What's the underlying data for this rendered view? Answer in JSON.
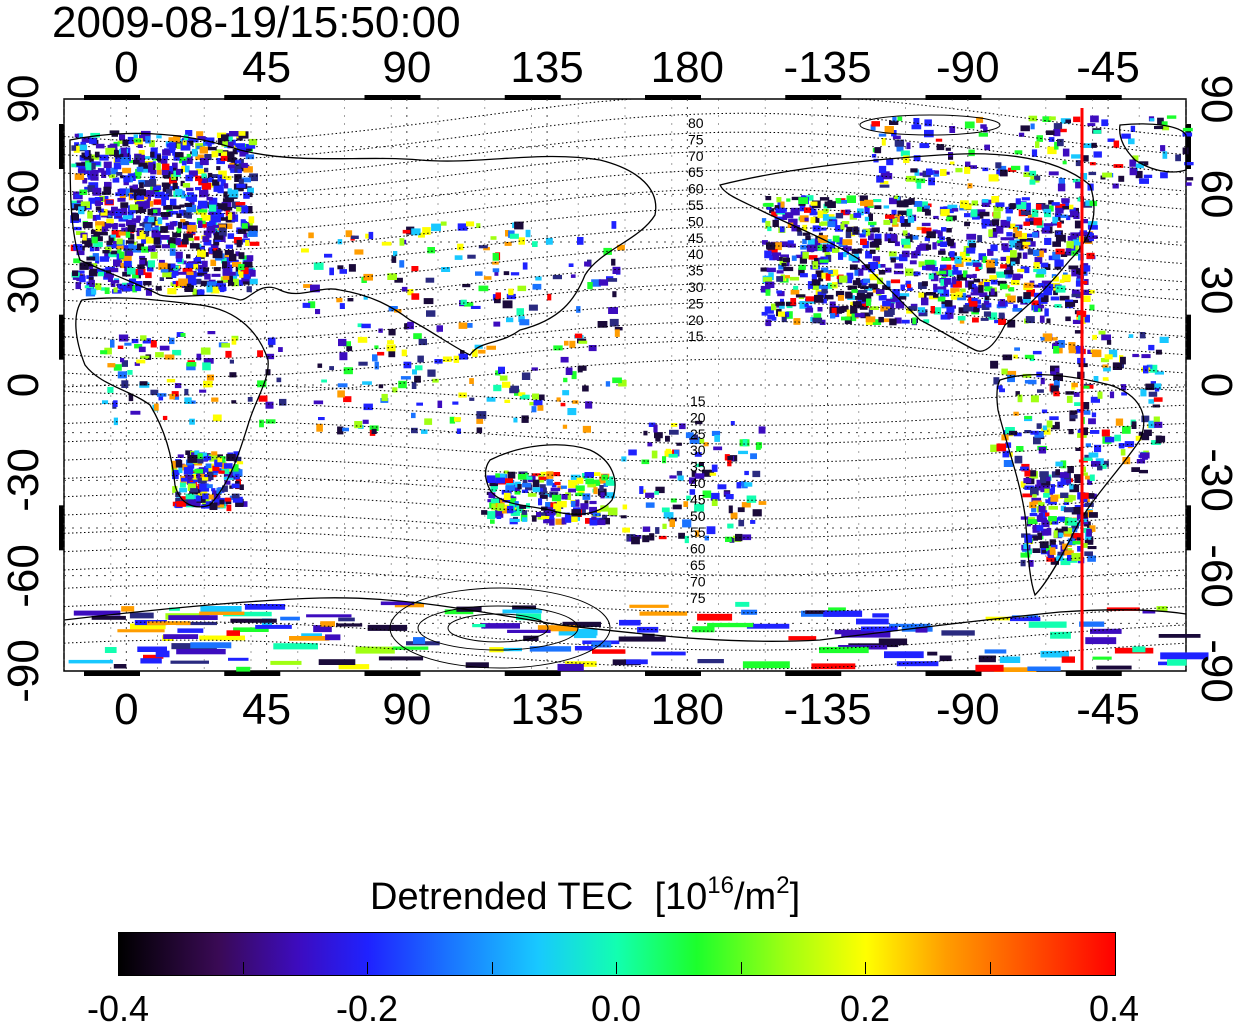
{
  "title": "2009-08-19/15:50:00",
  "lon_ticks": [
    "0",
    "45",
    "90",
    "135",
    "180",
    "-135",
    "-90",
    "-45"
  ],
  "lat_ticks": [
    "90",
    "60",
    "30",
    "0",
    "-30",
    "-60",
    "-90"
  ],
  "contour_labels_north": [
    "80",
    "75",
    "70",
    "65",
    "60",
    "55",
    "50",
    "45",
    "40",
    "35",
    "30",
    "25",
    "20",
    "15"
  ],
  "contour_labels_south": [
    "15",
    "20",
    "25",
    "30",
    "35",
    "40",
    "45",
    "50",
    "55",
    "60",
    "65",
    "70",
    "75"
  ],
  "colorbar": {
    "title": "Detrended TEC",
    "units_base": "[10",
    "units_exp": "16",
    "units_mid": "/m",
    "units_exp2": "2",
    "units_end": "]",
    "labels": [
      "-0.4",
      "-0.2",
      "0.0",
      "0.2",
      "0.4"
    ],
    "range": [
      -0.4,
      0.4
    ]
  },
  "terminator_marker_lon": -60,
  "colors": {
    "marker": "#ff0000"
  }
}
